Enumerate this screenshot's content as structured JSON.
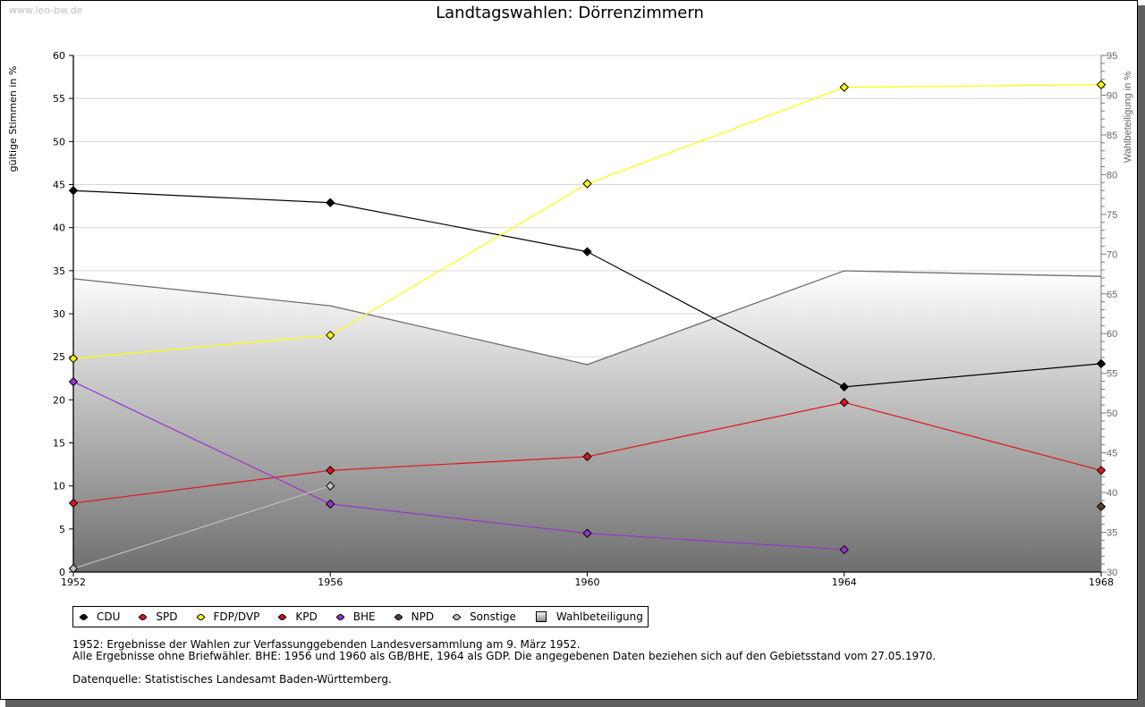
{
  "watermark": "www.leo-bw.de",
  "chart_data": {
    "type": "line",
    "title": "Landtagswahlen: Dörrenzimmern",
    "xlabel": "",
    "ylabel": "gültige Stimmen in %",
    "y2label": "Wahlbeteiligung in %",
    "ylim": [
      0,
      60
    ],
    "y2lim": [
      30,
      95
    ],
    "yticks": [
      0,
      5,
      10,
      15,
      20,
      25,
      30,
      35,
      40,
      45,
      50,
      55,
      60
    ],
    "y2ticks": [
      30,
      35,
      40,
      45,
      50,
      55,
      60,
      65,
      70,
      75,
      80,
      85,
      90,
      95
    ],
    "x": [
      1952,
      1956,
      1960,
      1964,
      1968
    ],
    "grid": true,
    "legend_position": "bottom-left",
    "series": [
      {
        "name": "CDU",
        "color": "#000000",
        "values": [
          44.3,
          42.9,
          37.2,
          21.5,
          24.2
        ]
      },
      {
        "name": "SPD",
        "color": "#e0141e",
        "values": [
          8.0,
          11.8,
          13.4,
          19.7,
          11.8
        ]
      },
      {
        "name": "FDP/DVP",
        "color": "#ffff00",
        "values": [
          24.8,
          27.5,
          45.1,
          56.3,
          56.6
        ]
      },
      {
        "name": "KPD",
        "color": "#c0101a",
        "values": [
          null,
          null,
          null,
          null,
          null
        ]
      },
      {
        "name": "BHE",
        "color": "#9933cc",
        "values": [
          22.1,
          7.9,
          4.5,
          2.6,
          null
        ]
      },
      {
        "name": "NPD",
        "color": "#5a3e2e",
        "values": [
          null,
          null,
          null,
          null,
          7.6
        ]
      },
      {
        "name": "Sonstige",
        "color": "#c0c0c0",
        "values": [
          0.4,
          10.0,
          null,
          null,
          null
        ]
      }
    ],
    "area": {
      "name": "Wahlbeteiligung",
      "axis": "right",
      "values": [
        66.9,
        63.5,
        56.1,
        67.9,
        67.2
      ]
    }
  },
  "legend": [
    "CDU",
    "SPD",
    "FDP/DVP",
    "KPD",
    "BHE",
    "NPD",
    "Sonstige",
    "Wahlbeteiligung"
  ],
  "notes": {
    "line1": "1952: Ergebnisse der Wahlen zur Verfassunggebenden Landesversammlung am 9. März 1952.",
    "line2": "Alle Ergebnisse ohne Briefwähler. BHE: 1956 und 1960 als GB/BHE, 1964 als GDP. Die angegebenen Daten beziehen sich auf den Gebietsstand vom 27.05.1970.",
    "source": "Datenquelle: Statistisches Landesamt Baden-Württemberg."
  }
}
